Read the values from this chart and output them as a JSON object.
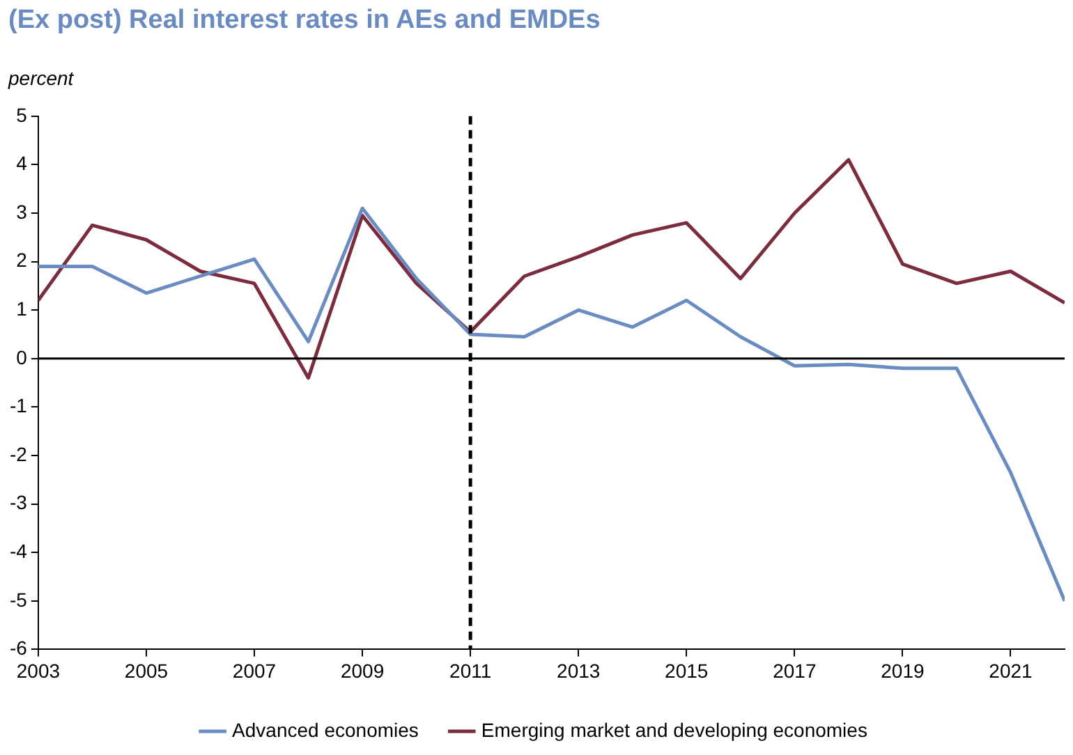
{
  "chart_data": {
    "type": "line",
    "title": "(Ex post) Real interest rates in AEs and EMDEs",
    "ylabel": "percent",
    "x": [
      2003,
      2004,
      2005,
      2006,
      2007,
      2008,
      2009,
      2010,
      2011,
      2012,
      2013,
      2014,
      2015,
      2016,
      2017,
      2018,
      2019,
      2020,
      2021,
      2022
    ],
    "series": [
      {
        "name": "Advanced economies",
        "color": "#6b8cc0",
        "values": [
          1.9,
          1.9,
          1.35,
          1.7,
          2.05,
          0.35,
          3.1,
          1.65,
          0.5,
          0.45,
          1.0,
          0.65,
          1.2,
          0.45,
          -0.15,
          -0.12,
          -0.2,
          -0.2,
          -2.35,
          -5.0
        ]
      },
      {
        "name": "Emerging market and developing economies",
        "color": "#7b2d3e",
        "values": [
          1.2,
          2.75,
          2.45,
          1.8,
          1.55,
          -0.4,
          2.95,
          1.55,
          0.55,
          1.7,
          2.1,
          2.55,
          2.8,
          1.65,
          3.0,
          4.1,
          1.95,
          1.55,
          1.8,
          1.15
        ]
      }
    ],
    "xlim": [
      2003,
      2022
    ],
    "xticks": [
      2003,
      2005,
      2007,
      2009,
      2011,
      2013,
      2015,
      2017,
      2019,
      2021
    ],
    "ylim": [
      -6,
      5
    ],
    "yticks": [
      -6,
      -5,
      -4,
      -3,
      -2,
      -1,
      0,
      1,
      2,
      3,
      4,
      5
    ],
    "ref_lines": [
      {
        "axis": "y",
        "value": 0,
        "color": "#000000",
        "line_style": "solid"
      },
      {
        "axis": "x",
        "value": 2011,
        "color": "#000000",
        "line_style": "dashed"
      }
    ],
    "grid": false,
    "legend": "bottom",
    "marker": "none",
    "line_style": "solid"
  }
}
